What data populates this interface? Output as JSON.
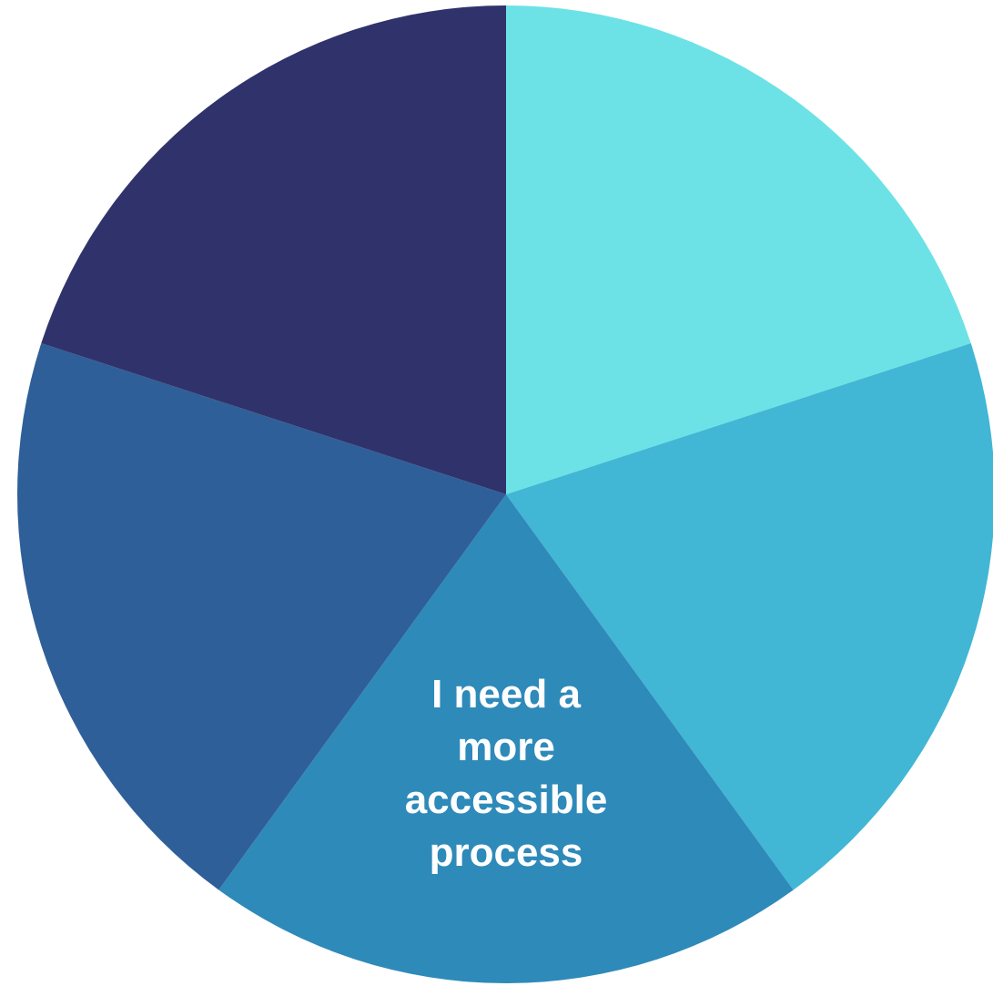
{
  "chart_data": {
    "type": "pie",
    "start_angle_deg": 0,
    "direction": "clockwise",
    "slices": [
      {
        "value": 20,
        "color": "#6ce2e6",
        "label": ""
      },
      {
        "value": 20,
        "color": "#42b6d5",
        "label": ""
      },
      {
        "value": 20,
        "color": "#2e8ab9",
        "label": "I need a more accessible process",
        "label_lines": [
          "I need a",
          "more",
          "accessible",
          "process"
        ]
      },
      {
        "value": 20,
        "color": "#2f5f98",
        "label": ""
      },
      {
        "value": 20,
        "color": "#30336b",
        "label": ""
      }
    ]
  }
}
